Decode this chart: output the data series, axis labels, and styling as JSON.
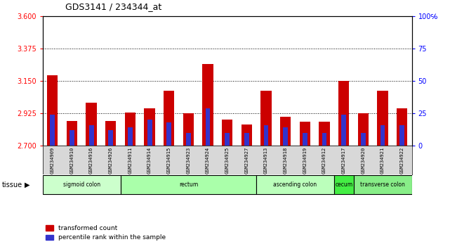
{
  "title": "GDS3141 / 234344_at",
  "samples": [
    "GSM234909",
    "GSM234910",
    "GSM234916",
    "GSM234926",
    "GSM234911",
    "GSM234914",
    "GSM234915",
    "GSM234923",
    "GSM234924",
    "GSM234925",
    "GSM234927",
    "GSM234913",
    "GSM234918",
    "GSM234919",
    "GSM234912",
    "GSM234917",
    "GSM234920",
    "GSM234921",
    "GSM234922"
  ],
  "red_values": [
    3.19,
    2.87,
    3.0,
    2.87,
    2.93,
    2.96,
    3.08,
    2.925,
    3.27,
    2.88,
    2.845,
    3.08,
    2.9,
    2.865,
    2.865,
    3.15,
    2.925,
    3.08,
    2.96
  ],
  "blue_values": [
    24,
    12,
    16,
    12,
    14,
    20,
    18,
    10,
    29,
    10,
    10,
    16,
    14,
    10,
    10,
    24,
    10,
    16,
    16
  ],
  "ylim_left": [
    2.7,
    3.6
  ],
  "ylim_right": [
    0,
    100
  ],
  "yticks_left": [
    2.7,
    2.925,
    3.15,
    3.375,
    3.6
  ],
  "yticks_right": [
    0,
    25,
    50,
    75,
    100
  ],
  "hlines": [
    2.925,
    3.15,
    3.375
  ],
  "bar_color_red": "#cc0000",
  "bar_color_blue": "#3333cc",
  "bar_width": 0.55,
  "blue_bar_width": 0.25,
  "tissue_groups": [
    {
      "label": "sigmoid colon",
      "start": 0,
      "end": 3,
      "color": "#ccffcc"
    },
    {
      "label": "rectum",
      "start": 4,
      "end": 10,
      "color": "#aaffaa"
    },
    {
      "label": "ascending colon",
      "start": 11,
      "end": 14,
      "color": "#bbffbb"
    },
    {
      "label": "cecum",
      "start": 15,
      "end": 15,
      "color": "#44ee44"
    },
    {
      "label": "transverse colon",
      "start": 16,
      "end": 18,
      "color": "#88ee88"
    }
  ],
  "legend_red": "transformed count",
  "legend_blue": "percentile rank within the sample",
  "base_value": 2.7
}
